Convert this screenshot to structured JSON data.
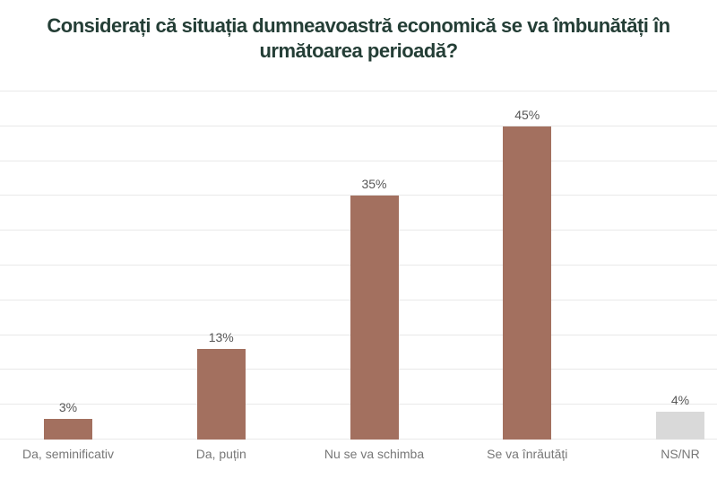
{
  "title": {
    "line1": "Considerați că situația dumneavoastră economică se va îmbunătăți în",
    "line2": "următoarea perioadă?"
  },
  "colors": {
    "title": "#243e36",
    "bar_primary": "#a3705f",
    "bar_neutral": "#d9d9d9",
    "gridline": "#e9e9e9",
    "value_label": "#575757",
    "category_label": "#777777",
    "background": "#ffffff"
  },
  "chart_data": {
    "type": "bar",
    "title": "Considerați că situația dumneavoastră economică se va îmbunătăți în următoarea perioadă?",
    "categories": [
      "Da, seminificativ",
      "Da, puțin",
      "Nu se va schimba",
      "Se va înrăutăți",
      "NS/NR"
    ],
    "values": [
      3,
      13,
      35,
      45,
      4
    ],
    "value_labels": [
      "3%",
      "13%",
      "35%",
      "45%",
      "4%"
    ],
    "bar_colors": [
      "#a3705f",
      "#a3705f",
      "#a3705f",
      "#a3705f",
      "#d9d9d9"
    ],
    "xlabel": "",
    "ylabel": "",
    "ylim": [
      0,
      50
    ],
    "gridline_step": 5,
    "grid": true,
    "legend": false,
    "unit": "%"
  }
}
